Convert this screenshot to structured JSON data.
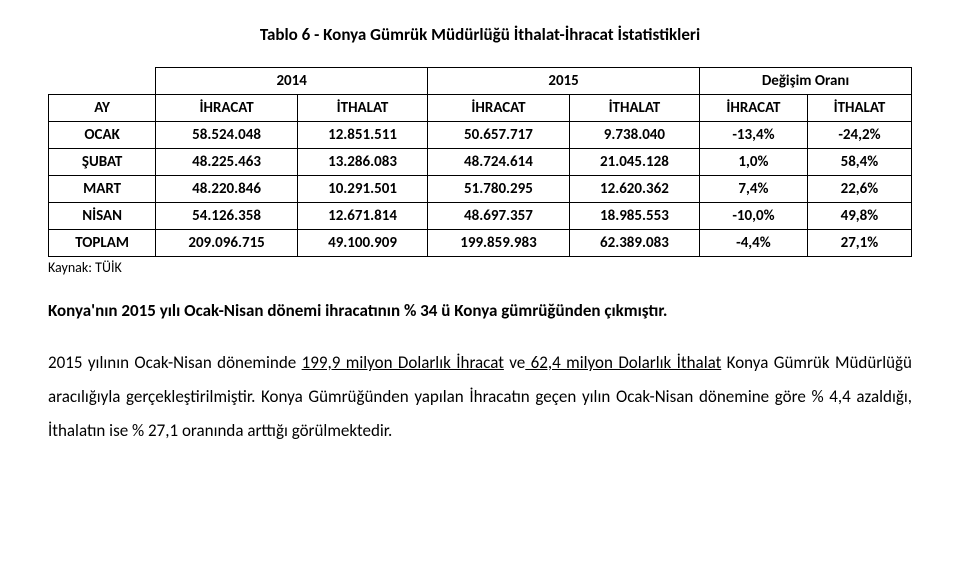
{
  "title": "Tablo 6 -  Konya Gümrük Müdürlüğü İthalat-İhracat İstatistikleri",
  "headers": {
    "ay": "AY",
    "y2014": "2014",
    "y2015": "2015",
    "degisim": "Değişim Oranı",
    "ihracat": "İHRACAT",
    "ithalat": "İTHALAT"
  },
  "rows": [
    {
      "label": "OCAK",
      "ihr14": "58.524.048",
      "ith14": "12.851.511",
      "ihr15": "50.657.717",
      "ith15": "9.738.040",
      "dihr": "-13,4%",
      "dith": "-24,2%"
    },
    {
      "label": "ŞUBAT",
      "ihr14": "48.225.463",
      "ith14": "13.286.083",
      "ihr15": "48.724.614",
      "ith15": "21.045.128",
      "dihr": "1,0%",
      "dith": "58,4%"
    },
    {
      "label": "MART",
      "ihr14": "48.220.846",
      "ith14": "10.291.501",
      "ihr15": "51.780.295",
      "ith15": "12.620.362",
      "dihr": "7,4%",
      "dith": "22,6%"
    },
    {
      "label": "NİSAN",
      "ihr14": "54.126.358",
      "ith14": "12.671.814",
      "ihr15": "48.697.357",
      "ith15": "18.985.553",
      "dihr": "-10,0%",
      "dith": "49,8%"
    },
    {
      "label": "TOPLAM",
      "ihr14": "209.096.715",
      "ith14": "49.100.909",
      "ihr15": "199.859.983",
      "ith15": "62.389.083",
      "dihr": "-4,4%",
      "dith": "27,1%"
    }
  ],
  "source": "Kaynak: TÜİK",
  "p1": {
    "t1": "Konya'nın 2015 yılı Ocak-Nisan dönemi ihracatının % 34 ü Konya gümrüğünden çıkmıştır."
  },
  "p2": {
    "t1": "2015 yılının Ocak-Nisan döneminde ",
    "u1": "199,9 milyon Dolarlık İhracat",
    "t2": " ve",
    "u2": " 62,4 milyon Dolarlık İthalat",
    "t3": " Konya Gümrük Müdürlüğü aracılığıyla gerçekleştirilmiştir. Konya Gümrüğünden yapılan İhracatın geçen yılın Ocak-Nisan dönemine göre % 4,4 azaldığı, İthalatın ise % 27,1 oranında arttığı görülmektedir."
  }
}
